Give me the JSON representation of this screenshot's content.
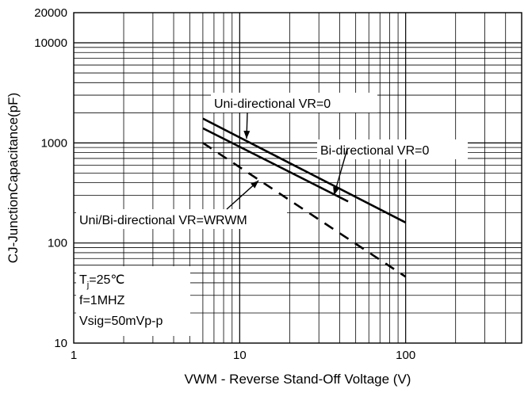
{
  "chart_data": {
    "type": "line",
    "xlabel": "VWM - Reverse Stand-Off Voltage (V)",
    "ylabel": "CJ-JunctionCapacitance(pF)",
    "x_scale": "log",
    "y_scale": "log",
    "xlim": [
      1,
      500
    ],
    "ylim": [
      10,
      20000
    ],
    "x_ticks": [
      1,
      10,
      100
    ],
    "x_tick_labels": [
      "1",
      "10",
      "100"
    ],
    "y_ticks": [
      10,
      100,
      1000,
      10000,
      20000
    ],
    "y_tick_labels": [
      "10",
      "100",
      "1000",
      "10000",
      "20000"
    ],
    "grid": true,
    "series": [
      {
        "name": "Uni-directional VR=0",
        "style": "solid",
        "x": [
          6,
          100
        ],
        "y": [
          1750,
          160
        ]
      },
      {
        "name": "Bi-directional VR=0",
        "style": "solid",
        "x": [
          6,
          45
        ],
        "y": [
          1400,
          260
        ]
      },
      {
        "name": "Uni/Bi-directional VR=WRWM",
        "style": "dashed",
        "x": [
          6,
          100
        ],
        "y": [
          1000,
          46
        ]
      }
    ],
    "annotations": [
      {
        "text": "Uni-directional VR=0",
        "points_to": [
          11,
          1100
        ]
      },
      {
        "text": "Bi-directional VR=0",
        "points_to": [
          37,
          300
        ]
      },
      {
        "text": "Uni/Bi-directional VR=WRWM",
        "points_to": [
          13,
          420
        ]
      }
    ],
    "conditions": {
      "tj_prefix": "T",
      "tj_subscript": "j",
      "tj_value": "=25℃",
      "frequency": "f=1MHZ",
      "vsig": "Vsig=50mVp-p"
    },
    "colors": {
      "line": "#000000",
      "grid": "#000000",
      "background": "#ffffff"
    }
  }
}
